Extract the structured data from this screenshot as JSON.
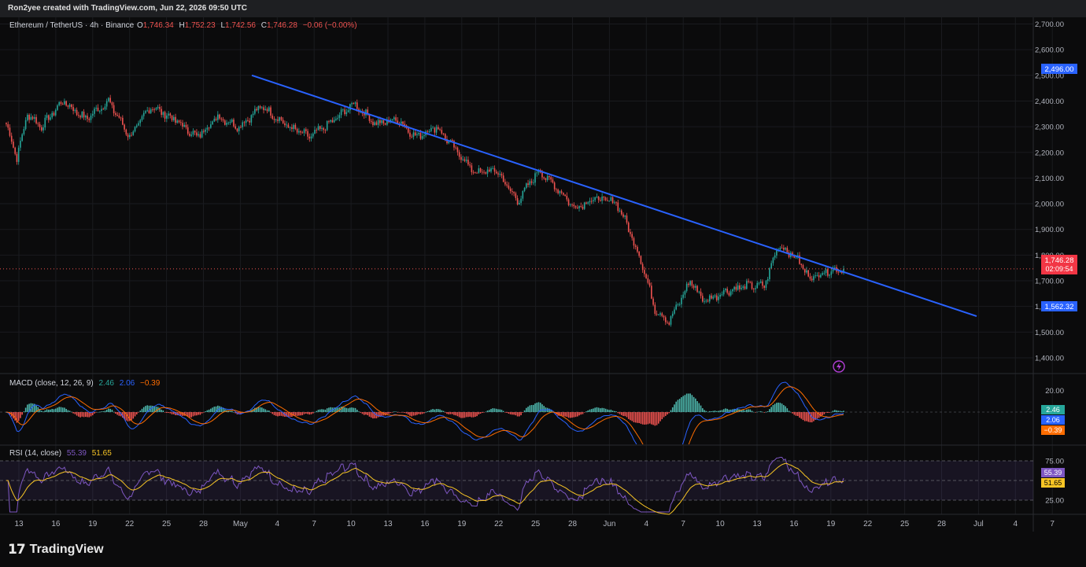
{
  "header": {
    "credit": "Ron2yee created with TradingView.com, Jun 22, 2026 09:50 UTC"
  },
  "legend": {
    "symbol": "Ethereum / TetherUS · 4h · Binance",
    "o_label": "O",
    "o": "1,746.34",
    "h_label": "H",
    "h": "1,752.23",
    "l_label": "L",
    "l": "1,742.56",
    "c_label": "C",
    "c": "1,746.28",
    "change": "−0.06 (−0.00%)"
  },
  "brand": {
    "name": "TradingView"
  },
  "colors": {
    "up": "#26a69a",
    "down": "#ef5350",
    "trend": "#2962ff",
    "macd": "#2962ff",
    "signal": "#ff6d00",
    "rsi": "#7e57c2",
    "rsi_ma": "#f7c525",
    "price_tag": "#f23645",
    "level_tag": "#2962ff"
  },
  "chart_data": {
    "type": "candlestick",
    "symbol": "ETHUSDT",
    "interval": "4h",
    "x_ticks": [
      "13",
      "16",
      "19",
      "22",
      "25",
      "28",
      "May",
      "4",
      "7",
      "10",
      "13",
      "16",
      "19",
      "22",
      "25",
      "28",
      "Jun",
      "4",
      "7",
      "10",
      "13",
      "16",
      "19",
      "22",
      "25",
      "28",
      "Jul",
      "4",
      "7"
    ],
    "price_axis": {
      "ticks": [
        "2,700.00",
        "2,600.00",
        "2,500.00",
        "2,400.00",
        "2,300.00",
        "2,200.00",
        "2,100.00",
        "2,000.00",
        "1,900.00",
        "1,800.00",
        "1,700.00",
        "1,600.00",
        "1,500.00",
        "1,400.00"
      ],
      "ylim": [
        1300,
        2700
      ]
    },
    "price_anchors": [
      [
        0,
        2310
      ],
      [
        6,
        2180
      ],
      [
        12,
        2350
      ],
      [
        20,
        2300
      ],
      [
        32,
        2400
      ],
      [
        45,
        2330
      ],
      [
        58,
        2400
      ],
      [
        70,
        2260
      ],
      [
        82,
        2380
      ],
      [
        95,
        2330
      ],
      [
        108,
        2260
      ],
      [
        120,
        2340
      ],
      [
        132,
        2300
      ],
      [
        145,
        2380
      ],
      [
        160,
        2300
      ],
      [
        172,
        2260
      ],
      [
        185,
        2320
      ],
      [
        197,
        2390
      ],
      [
        210,
        2310
      ],
      [
        222,
        2330
      ],
      [
        232,
        2260
      ],
      [
        244,
        2300
      ],
      [
        256,
        2200
      ],
      [
        266,
        2120
      ],
      [
        278,
        2130
      ],
      [
        290,
        2010
      ],
      [
        302,
        2130
      ],
      [
        314,
        2050
      ],
      [
        322,
        1985
      ],
      [
        334,
        2020
      ],
      [
        346,
        2005
      ],
      [
        352,
        1920
      ],
      [
        360,
        1780
      ],
      [
        368,
        1590
      ],
      [
        376,
        1540
      ],
      [
        388,
        1700
      ],
      [
        396,
        1620
      ],
      [
        408,
        1660
      ],
      [
        420,
        1680
      ],
      [
        430,
        1680
      ],
      [
        438,
        1840
      ],
      [
        448,
        1790
      ],
      [
        456,
        1710
      ],
      [
        466,
        1740
      ],
      [
        475,
        1746
      ]
    ],
    "current_price": "1,746.28",
    "countdown": "02:09:54",
    "levels": [
      "2,496.00",
      "1,562.32"
    ],
    "trendline": {
      "start": [
        "May 3",
        2500
      ],
      "end": [
        "Jul 4",
        1562
      ]
    },
    "macd": {
      "label": "MACD (close, 12, 26, 9)",
      "values": [
        "2.46",
        "2.06",
        "−0.39"
      ],
      "ticks": [
        "20.00"
      ]
    },
    "rsi": {
      "label": "RSI (14, close)",
      "values": [
        "55.39",
        "51.65"
      ],
      "ticks": [
        "75.00",
        "25.00"
      ]
    }
  }
}
